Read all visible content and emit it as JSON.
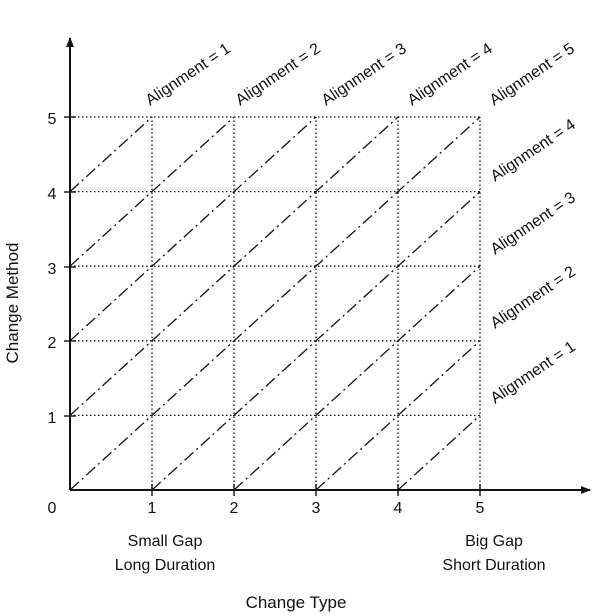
{
  "diagram": {
    "x_axis": {
      "title": "Change Type",
      "ticks": [
        "0",
        "1",
        "2",
        "3",
        "4",
        "5"
      ],
      "left_note": [
        "Small Gap",
        "Long Duration"
      ],
      "right_note": [
        "Big Gap",
        "Short Duration"
      ]
    },
    "y_axis": {
      "title": "Change Method",
      "ticks": [
        "1",
        "2",
        "3",
        "4",
        "5"
      ]
    },
    "grid": {
      "range": [
        0,
        5
      ],
      "style": "dotted"
    },
    "alignment_top_labels": [
      "Alignment = 1",
      "Alignment = 2",
      "Alignment = 3",
      "Alignment = 4",
      "Alignment = 5"
    ],
    "alignment_right_labels": [
      "Alignment = 4",
      "Alignment = 3",
      "Alignment = 2",
      "Alignment = 1"
    ],
    "diagonal_lines": [
      {
        "from": [
          0,
          4
        ],
        "to": [
          1,
          5
        ]
      },
      {
        "from": [
          0,
          3
        ],
        "to": [
          2,
          5
        ]
      },
      {
        "from": [
          0,
          2
        ],
        "to": [
          3,
          5
        ]
      },
      {
        "from": [
          0,
          1
        ],
        "to": [
          4,
          5
        ]
      },
      {
        "from": [
          0,
          0
        ],
        "to": [
          5,
          5
        ]
      },
      {
        "from": [
          1,
          0
        ],
        "to": [
          5,
          4
        ]
      },
      {
        "from": [
          2,
          0
        ],
        "to": [
          5,
          3
        ]
      },
      {
        "from": [
          3,
          0
        ],
        "to": [
          5,
          2
        ]
      },
      {
        "from": [
          4,
          0
        ],
        "to": [
          5,
          1
        ]
      }
    ],
    "colors": {
      "line": "#111111",
      "background": "#ffffff"
    }
  }
}
